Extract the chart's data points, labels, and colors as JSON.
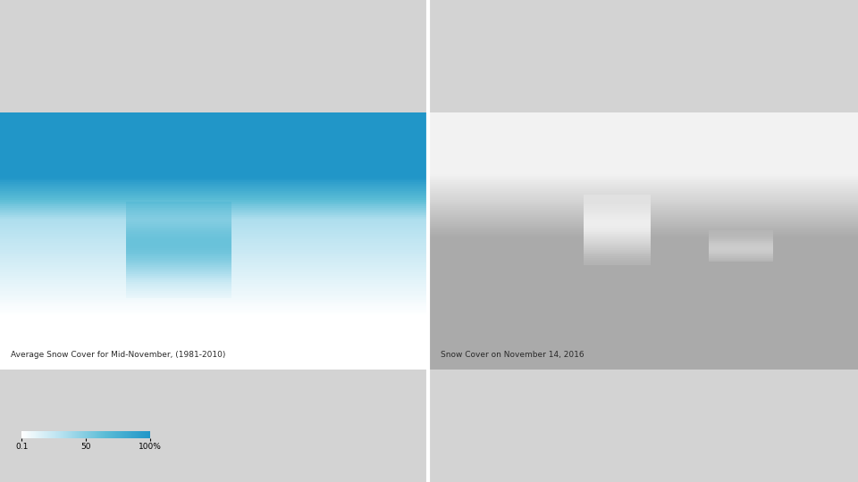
{
  "title_left": "Average Snow Cover for Mid-November, (1981-2010)",
  "title_right": "Snow Cover on November 14, 2016",
  "colorbar_labels": [
    "0.1",
    "50",
    "100%"
  ],
  "bg_color": "#d3d3d3",
  "land_color": "#aaaaaa",
  "land_color_right": "#b0b0b0",
  "snow_colors": [
    "#ffffff",
    "#b8e2f0",
    "#5bbcd6",
    "#2196c8"
  ],
  "snow_color_stops": [
    0.0,
    0.3,
    0.65,
    1.0
  ],
  "text_color": "#2a2a2a",
  "border_color": "#555555",
  "state_border_color": "#666666",
  "lake_color": "#d3d3d3",
  "divider_color": "#ffffff"
}
